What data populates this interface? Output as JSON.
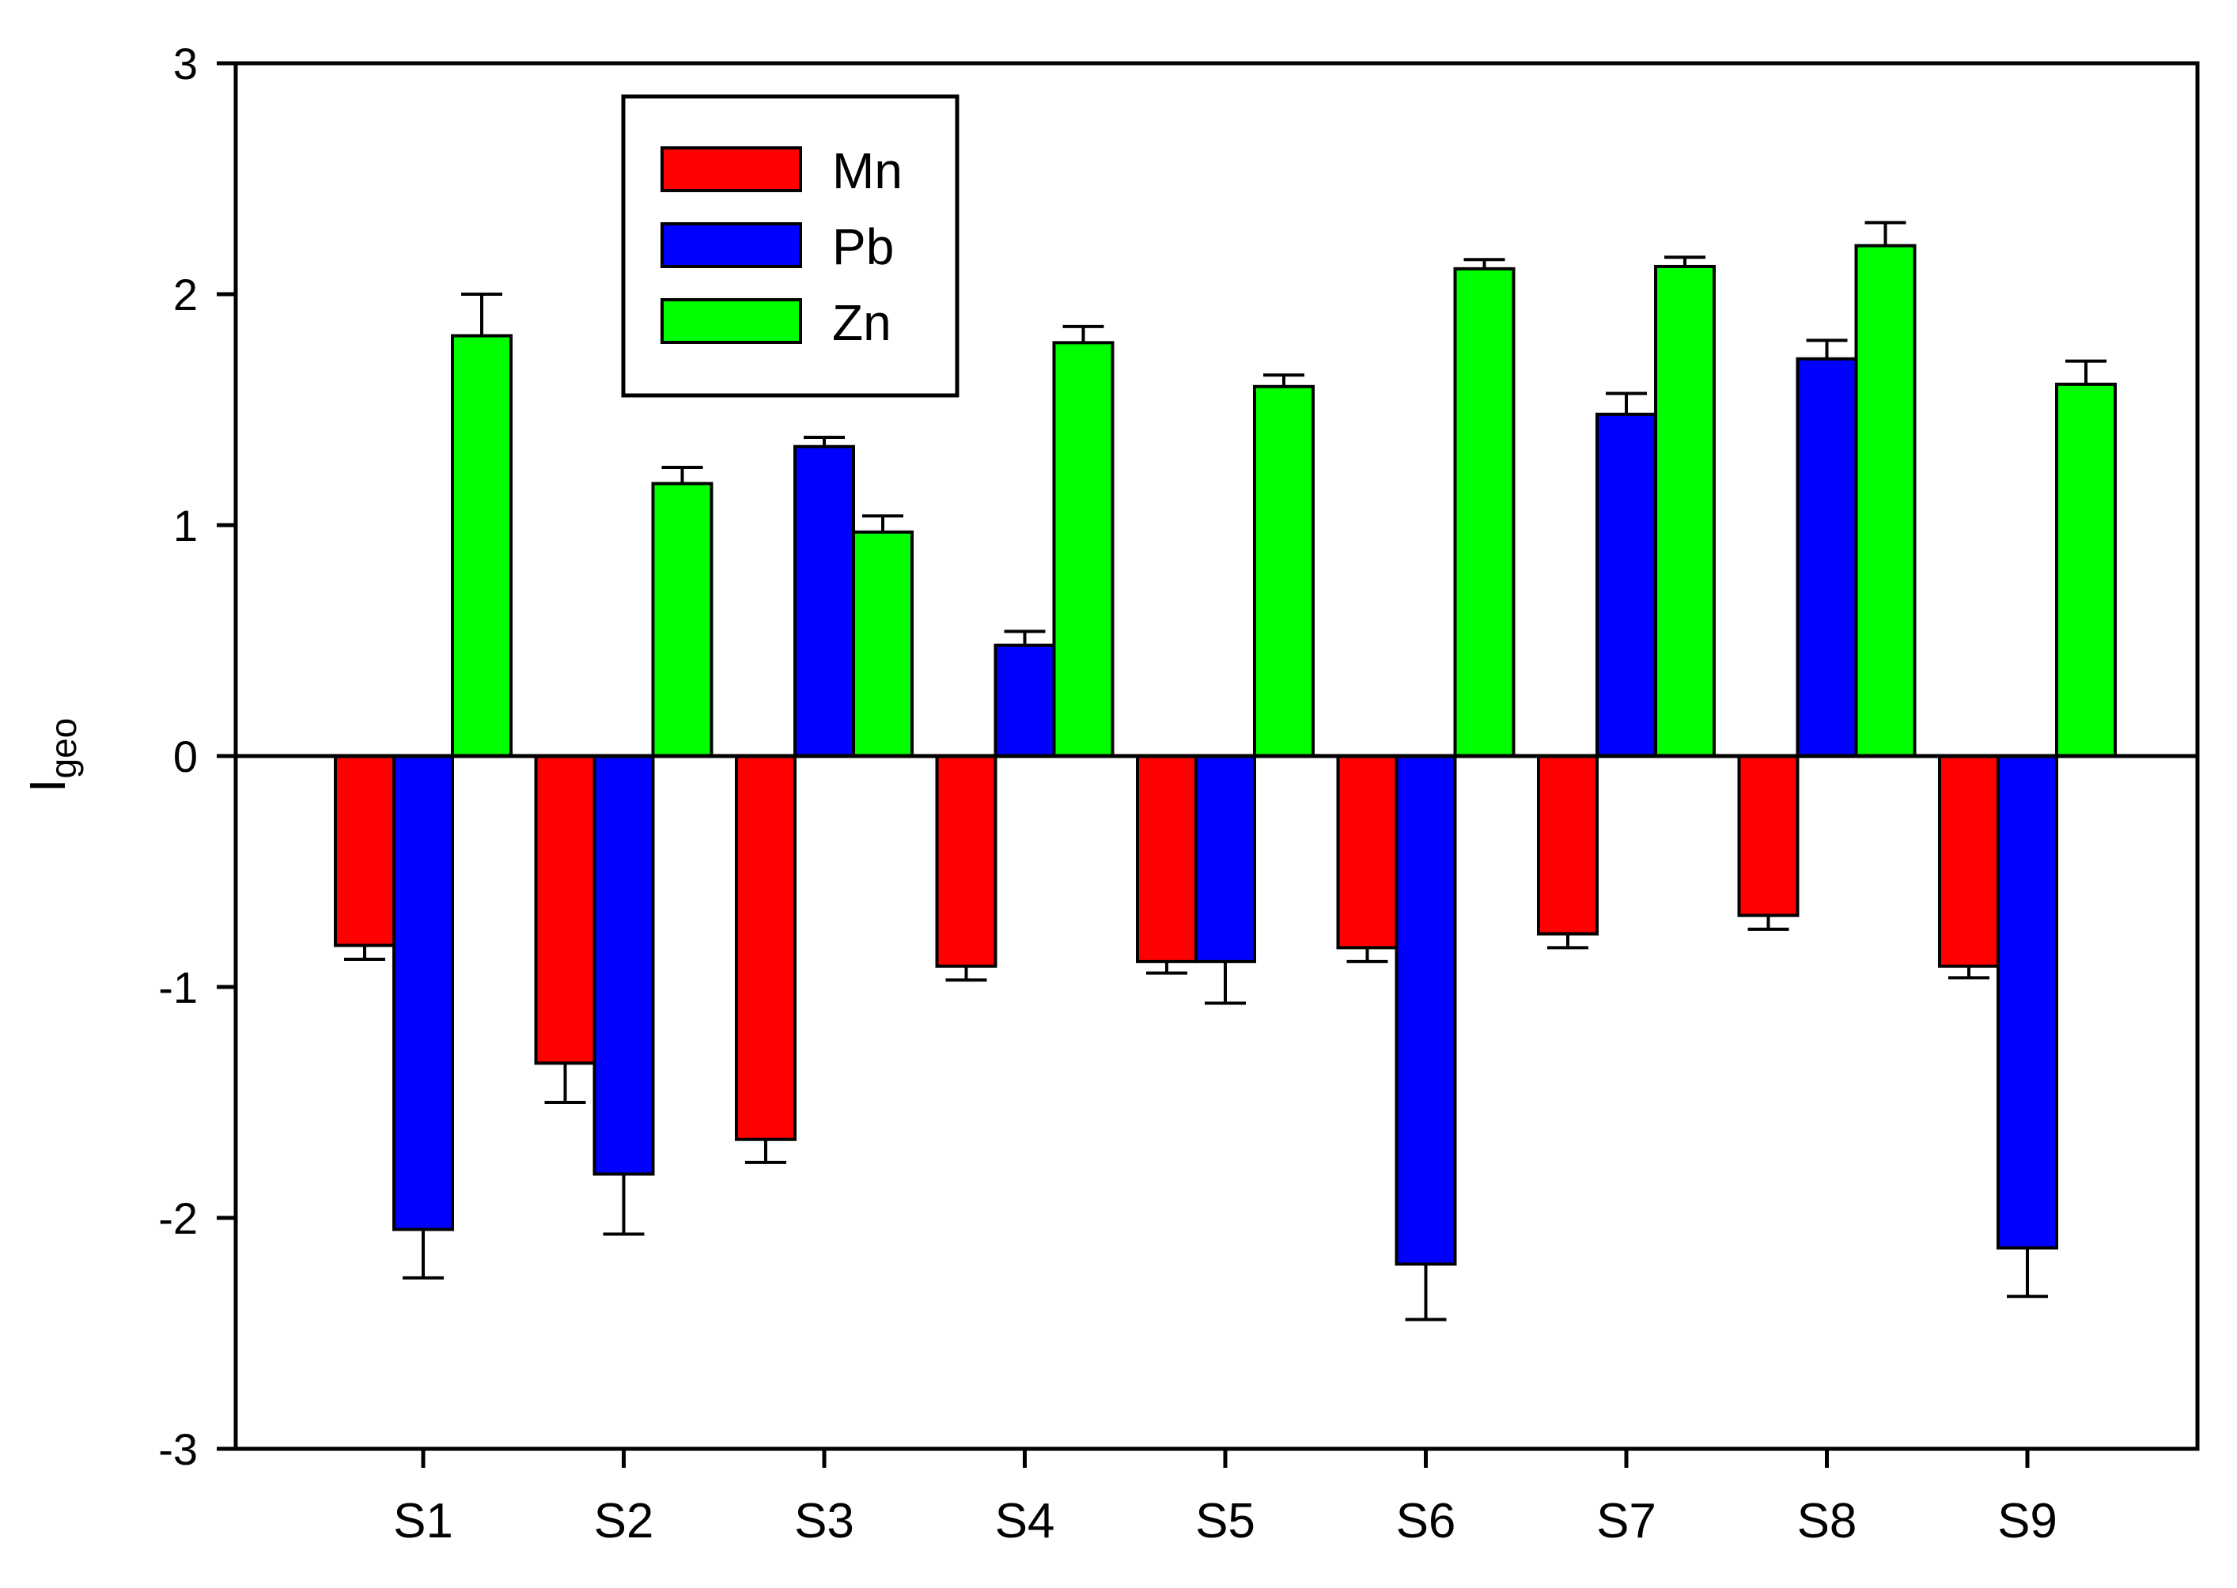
{
  "chart_data": {
    "type": "bar",
    "title": "",
    "xlabel": "",
    "ylabel": "I",
    "ylabel_subscript": "geo",
    "ylim": [
      -3,
      3
    ],
    "yticks": [
      3,
      2,
      1,
      0,
      -1,
      -2,
      -3
    ],
    "ytick_labels": [
      "3",
      "2",
      "1",
      "0",
      "-1",
      "-2",
      "-3"
    ],
    "categories": [
      "S1",
      "S2",
      "S3",
      "S4",
      "S5",
      "S6",
      "S7",
      "S8",
      "S9"
    ],
    "legend_position": "top-left",
    "series": [
      {
        "name": "Mn",
        "color": "#ff0000",
        "values": [
          -0.82,
          -1.33,
          -1.66,
          -0.91,
          -0.89,
          -0.83,
          -0.77,
          -0.69,
          -0.91
        ],
        "errors": [
          0.06,
          0.17,
          0.1,
          0.06,
          0.05,
          0.06,
          0.06,
          0.06,
          0.05
        ]
      },
      {
        "name": "Pb",
        "color": "#0000ff",
        "values": [
          -2.05,
          -1.81,
          1.34,
          0.48,
          -0.89,
          -2.2,
          1.48,
          1.72,
          -2.13
        ],
        "errors": [
          0.21,
          0.26,
          0.04,
          0.06,
          0.18,
          0.24,
          0.09,
          0.08,
          0.21
        ]
      },
      {
        "name": "Zn",
        "color": "#00ff00",
        "values": [
          1.82,
          1.18,
          0.97,
          1.79,
          1.6,
          2.11,
          2.12,
          2.21,
          1.61
        ],
        "errors": [
          0.18,
          0.07,
          0.07,
          0.07,
          0.05,
          0.04,
          0.04,
          0.1,
          0.1
        ]
      }
    ]
  }
}
